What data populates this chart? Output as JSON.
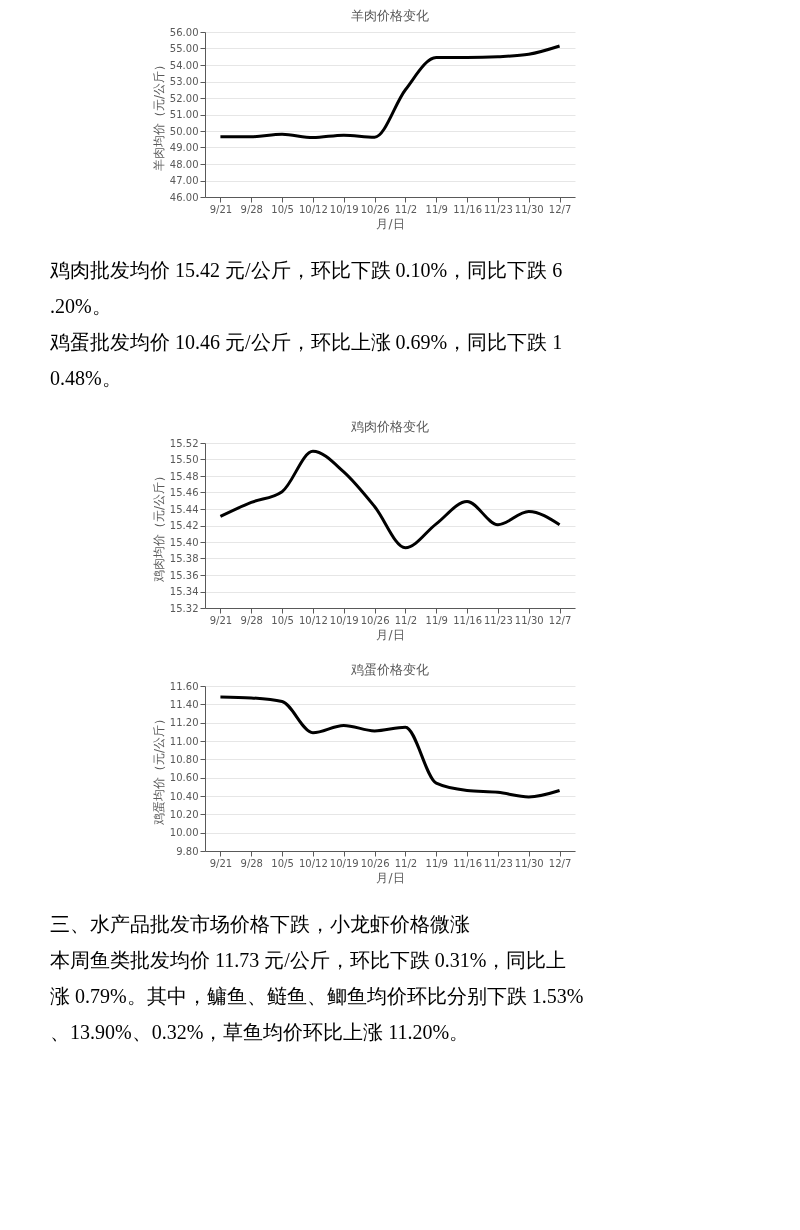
{
  "chart_data": [
    {
      "type": "line",
      "title": "羊肉价格变化",
      "xlabel": "月/日",
      "ylabel": "羊肉均价（元/公斤）",
      "categories": [
        "9/21",
        "9/28",
        "10/5",
        "10/12",
        "10/19",
        "10/26",
        "11/2",
        "11/9",
        "11/16",
        "11/23",
        "11/30",
        "12/7"
      ],
      "series": [
        {
          "color": "#000000",
          "values": [
            49.65,
            49.65,
            49.8,
            49.6,
            49.75,
            49.62,
            52.5,
            54.45,
            54.45,
            54.5,
            54.65,
            55.15
          ]
        }
      ],
      "ylim": [
        46,
        56
      ],
      "yticks": [
        {
          "value": 46,
          "label": "46.00"
        },
        {
          "value": 47,
          "label": "47.00"
        },
        {
          "value": 48,
          "label": "48.00"
        },
        {
          "value": 49,
          "label": "49.00"
        },
        {
          "value": 50,
          "label": "50.00"
        },
        {
          "value": 51,
          "label": "51.00"
        },
        {
          "value": 52,
          "label": "52.00"
        },
        {
          "value": 53,
          "label": "53.00"
        },
        {
          "value": 54,
          "label": "54.00"
        },
        {
          "value": 55,
          "label": "55.00"
        },
        {
          "value": 56,
          "label": "56.00"
        }
      ],
      "grid": "y",
      "marker": "none",
      "line_style": "solid",
      "annotations": [
        "鸡肉批发均价 15.42 元/公斤，环比下跌 0.10%，同比下跌 6.20%。",
        "鸡蛋批发均价 10.46 元/公斤，环比上涨 0.69%，同比下跌 10.48%。"
      ]
    },
    {
      "type": "line",
      "title": "鸡肉价格变化",
      "xlabel": "月/日",
      "ylabel": "鸡肉均价（元/公斤）",
      "categories": [
        "9/21",
        "9/28",
        "10/5",
        "10/12",
        "10/19",
        "10/26",
        "11/2",
        "11/9",
        "11/16",
        "11/23",
        "11/30",
        "12/7"
      ],
      "series": [
        {
          "color": "#000000",
          "values": [
            15.431,
            15.448,
            15.461,
            15.51,
            15.485,
            15.443,
            15.393,
            15.422,
            15.449,
            15.421,
            15.437,
            15.421
          ]
        }
      ],
      "ylim": [
        15.32,
        15.52
      ],
      "yticks": [
        {
          "value": 15.32,
          "label": "15.32"
        },
        {
          "value": 15.34,
          "label": "15.34"
        },
        {
          "value": 15.36,
          "label": "15.36"
        },
        {
          "value": 15.38,
          "label": "15.38"
        },
        {
          "value": 15.4,
          "label": "15.40"
        },
        {
          "value": 15.42,
          "label": "15.42"
        },
        {
          "value": 15.44,
          "label": "15.44"
        },
        {
          "value": 15.46,
          "label": "15.46"
        },
        {
          "value": 15.48,
          "label": "15.48"
        },
        {
          "value": 15.5,
          "label": "15.50"
        },
        {
          "value": 15.52,
          "label": "15.52"
        }
      ],
      "grid": "y",
      "marker": "none",
      "line_style": "solid"
    },
    {
      "type": "line",
      "title": "鸡蛋价格变化",
      "xlabel": "月/日",
      "ylabel": "鸡蛋均价（元/公斤）",
      "categories": [
        "9/21",
        "9/28",
        "10/5",
        "10/12",
        "10/19",
        "10/26",
        "11/2",
        "11/9",
        "11/16",
        "11/23",
        "11/30",
        "12/7"
      ],
      "series": [
        {
          "color": "#000000",
          "values": [
            11.48,
            11.47,
            11.43,
            11.09,
            11.17,
            11.11,
            11.15,
            10.54,
            10.46,
            10.44,
            10.39,
            10.46
          ]
        }
      ],
      "ylim": [
        9.8,
        11.6
      ],
      "yticks": [
        {
          "value": 9.8,
          "label": "9.80"
        },
        {
          "value": 10,
          "label": "10.00"
        },
        {
          "value": 10.2,
          "label": "10.20"
        },
        {
          "value": 10.4,
          "label": "10.40"
        },
        {
          "value": 10.6,
          "label": "10.60"
        },
        {
          "value": 10.8,
          "label": "10.80"
        },
        {
          "value": 11,
          "label": "11.00"
        },
        {
          "value": 11.2,
          "label": "11.20"
        },
        {
          "value": 11.4,
          "label": "11.40"
        },
        {
          "value": 11.6,
          "label": "11.60"
        }
      ],
      "grid": "y",
      "marker": "none",
      "line_style": "solid",
      "annotations": [
        "三、水产品批发市场价格下跌，小龙虾价格微涨",
        "本周鱼类批发均价 11.73 元/公斤，环比下跌 0.31%，同比上涨 0.79%。其中，鳙鱼、鲢鱼、鲫鱼均价环比分别下跌 1.53%、13.90%、0.32%，草鱼均价环比上涨 11.20%。"
      ]
    }
  ]
}
